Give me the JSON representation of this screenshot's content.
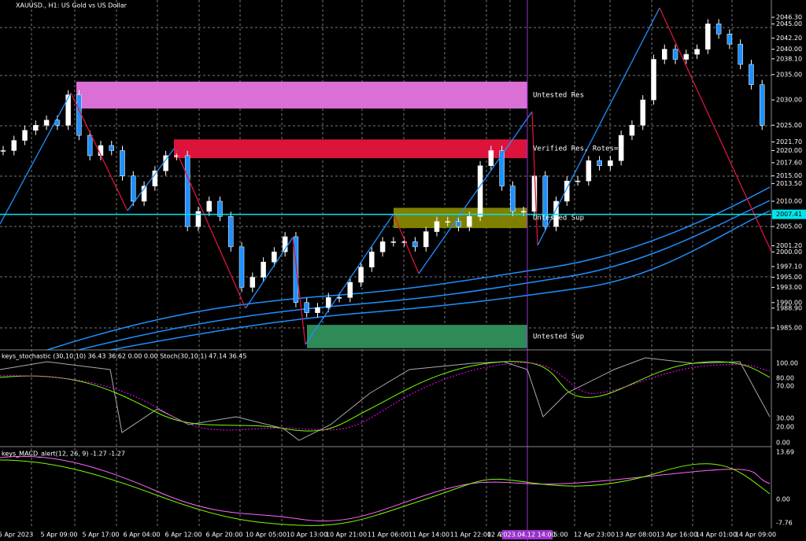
{
  "header": {
    "title": "XAUUSD., H1: US Gold vs US Dollar"
  },
  "price_axis": [
    {
      "value": 2046.3,
      "label": "2046.30"
    },
    {
      "value": 2045.0,
      "label": "2045.00"
    },
    {
      "value": 2042.2,
      "label": "2042.20"
    },
    {
      "value": 2040.0,
      "label": "2040.00"
    },
    {
      "value": 2038.1,
      "label": "2038.10"
    },
    {
      "value": 2035.0,
      "label": "2035.00"
    },
    {
      "value": 2030.0,
      "label": "2030.00"
    },
    {
      "value": 2025.0,
      "label": "2025.00"
    },
    {
      "value": 2021.7,
      "label": "2021.70"
    },
    {
      "value": 2020.0,
      "label": "2020.00"
    },
    {
      "value": 2017.6,
      "label": "2017.60"
    },
    {
      "value": 2015.0,
      "label": "2015.00"
    },
    {
      "value": 2013.5,
      "label": "2013.50"
    },
    {
      "value": 2010.0,
      "label": "2010.00"
    },
    {
      "value": 2005.0,
      "label": "2005.00"
    },
    {
      "value": 2001.2,
      "label": "2001.20"
    },
    {
      "value": 2000.0,
      "label": "2000.00"
    },
    {
      "value": 1997.1,
      "label": "1997.10"
    },
    {
      "value": 1995.0,
      "label": "1995.00"
    },
    {
      "value": 1993.0,
      "label": "1993.00"
    },
    {
      "value": 1990.0,
      "label": "1990.00"
    },
    {
      "value": 1988.9,
      "label": "1988.90"
    },
    {
      "value": 1985.0,
      "label": "1985.00"
    }
  ],
  "current_price": {
    "value": 2007.41,
    "label": "2007.41"
  },
  "candles": [
    2020,
    2022,
    2024,
    2025,
    2026,
    2025,
    2031,
    2023,
    2019,
    2021,
    2020,
    2015,
    2010,
    2013,
    2016,
    2019,
    2019,
    2005,
    2008,
    2010,
    2007,
    2001,
    1993,
    1995,
    1998,
    2000,
    2003,
    1990,
    1988,
    1989,
    1991,
    1991,
    1994,
    1997,
    2000,
    2002,
    2002,
    2002,
    2001,
    2004,
    2006,
    2006,
    2005,
    2007,
    2017,
    2020,
    2013,
    2008,
    2008,
    2015,
    2005,
    2010,
    2014,
    2014,
    2018,
    2017,
    2018,
    2023,
    2025,
    2030,
    2038,
    2040,
    2038,
    2039,
    2040,
    2045,
    2043,
    2041,
    2037,
    2033,
    2025
  ],
  "zones": [
    {
      "label": "Untested Res",
      "top": 2033.6,
      "bottom": 2028.3,
      "color": "#da70d6"
    },
    {
      "label": "Verified Res, Rotes=1",
      "top": 2022.2,
      "bottom": 2018.5,
      "color": "#dc143c"
    },
    {
      "label": "Untested Sup",
      "top": 2008.7,
      "bottom": 2004.7,
      "color": "#808000"
    },
    {
      "label": "Untested Sup",
      "top": 1985.6,
      "bottom": 1981.0,
      "color": "#2e8b57"
    }
  ],
  "stochastic": {
    "label": "keys_stochastic (30,10,10) 36.43 36.62 0.00 0.00 Stoch(30,10,1) 47.14 36.45",
    "axis": [
      "100.00",
      "80.00",
      "70.00",
      "30.00",
      "20.00",
      "0.00"
    ]
  },
  "macd": {
    "label": "keys_MACD_alert(12, 26, 9) -1.27 -1.27",
    "axis": [
      "13.69",
      "0.00",
      "-7.76"
    ]
  },
  "time_axis": [
    "5 Apr 2023",
    "5 Apr 09:00",
    "5 Apr 17:00",
    "6 Apr 04:00",
    "6 Apr 12:00",
    "6 Apr 20:00",
    "10 Apr 05:00",
    "10 Apr 13:00",
    "10 Apr 21:00",
    "11 Apr 06:00",
    "11 Apr 14:00",
    "11 Apr 22:00",
    "12 A",
    "15:00",
    "12 Apr 23:00",
    "13 Apr 08:00",
    "13 Apr 16:00",
    "14 Apr 01:00",
    "14 Apr 09:00"
  ],
  "cursor_time": "2023.04.12 14:00"
}
